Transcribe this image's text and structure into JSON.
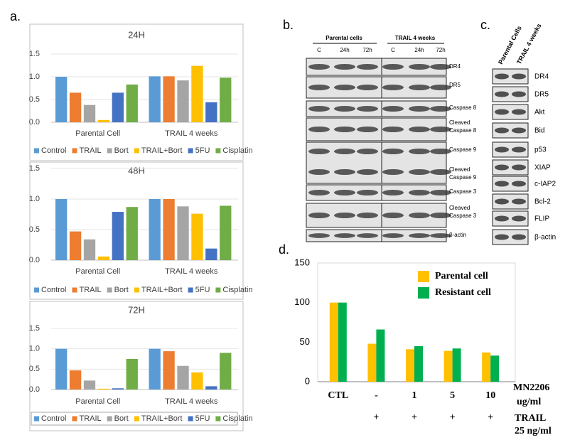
{
  "figure": {
    "panel_labels": [
      "a.",
      "b.",
      "c.",
      "d."
    ],
    "blot_b": {
      "groups": [
        "Parental cells",
        "TRAIL 4 weeks"
      ],
      "lanes": [
        "C",
        "24h",
        "72h",
        "C",
        "24h",
        "72h"
      ],
      "bands": [
        [
          "DR4"
        ],
        [
          "DR5"
        ],
        [
          "Caspase 8"
        ],
        [
          "Cleaved",
          "Caspase 8"
        ],
        [
          "Caspase 9"
        ],
        [
          "Cleaved",
          "Caspase 9"
        ],
        [
          "Caspase 3"
        ],
        [
          "Cleaved",
          "Caspase 3"
        ],
        [
          "β-actin"
        ]
      ]
    },
    "blot_c": {
      "lanes": [
        "Parental Cells",
        "TRAIL 4 weeks"
      ],
      "bands": [
        "DR4",
        "DR5",
        "Akt",
        "Bid",
        "p53",
        "XIAP",
        "c-IAP2",
        "Bcl-2",
        "FLIP",
        "β-actin"
      ]
    }
  },
  "chart_data": [
    {
      "type": "bar",
      "title": "24H",
      "categories": [
        "Parental Cell",
        "TRAIL 4 weeks"
      ],
      "series": [
        {
          "name": "Control",
          "color": "#5b9bd5",
          "values": [
            1.0,
            1.01
          ]
        },
        {
          "name": "TRAIL",
          "color": "#ed7d31",
          "values": [
            0.65,
            1.01
          ]
        },
        {
          "name": "Bort",
          "color": "#a5a5a5",
          "values": [
            0.38,
            0.92
          ]
        },
        {
          "name": "TRAIL+Bort",
          "color": "#ffc000",
          "values": [
            0.05,
            1.24
          ]
        },
        {
          "name": "5FU",
          "color": "#4472c4",
          "values": [
            0.65,
            0.44
          ]
        },
        {
          "name": "Cisplatin",
          "color": "#70ad47",
          "values": [
            0.83,
            0.98
          ]
        }
      ],
      "ylim": [
        0,
        1.5
      ],
      "yticks": [
        {
          "value": 0,
          "label": "0.0"
        },
        {
          "value": 0.5,
          "label": "0.5"
        },
        {
          "value": 1,
          "label": "1.0"
        },
        {
          "value": 1.5,
          "label": "1.5"
        }
      ],
      "grid": true,
      "legend": "bottom",
      "legend_frame": false
    },
    {
      "type": "bar",
      "title": "48H",
      "categories": [
        "Parental Cell",
        "TRAIL 4 weeks"
      ],
      "series": [
        {
          "name": "Control",
          "color": "#5b9bd5",
          "values": [
            1.0,
            1.0
          ]
        },
        {
          "name": "TRAIL",
          "color": "#ed7d31",
          "values": [
            0.47,
            1.0
          ]
        },
        {
          "name": "Bort",
          "color": "#a5a5a5",
          "values": [
            0.34,
            0.88
          ]
        },
        {
          "name": "TRAIL+Bort",
          "color": "#ffc000",
          "values": [
            0.06,
            0.76
          ]
        },
        {
          "name": "5FU",
          "color": "#4472c4",
          "values": [
            0.79,
            0.19
          ]
        },
        {
          "name": "Cisplatin",
          "color": "#70ad47",
          "values": [
            0.87,
            0.89
          ]
        }
      ],
      "ylim": [
        0,
        1.5
      ],
      "yticks": [
        {
          "value": 0,
          "label": "0.0"
        },
        {
          "value": 0.5,
          "label": "0.5"
        },
        {
          "value": 1,
          "label": "1.0"
        },
        {
          "value": 1.5,
          "label": "1.5"
        }
      ],
      "grid": true,
      "legend": "bottom",
      "legend_frame": false
    },
    {
      "type": "bar",
      "title": "72H",
      "categories": [
        "Parental Cell",
        "TRAIL 4 weeks"
      ],
      "series": [
        {
          "name": "Control",
          "color": "#5b9bd5",
          "values": [
            1.0,
            1.0
          ]
        },
        {
          "name": "TRAIL",
          "color": "#ed7d31",
          "values": [
            0.47,
            0.94
          ]
        },
        {
          "name": "Bort",
          "color": "#a5a5a5",
          "values": [
            0.22,
            0.58
          ]
        },
        {
          "name": "TRAIL+Bort",
          "color": "#ffc000",
          "values": [
            0.02,
            0.42
          ]
        },
        {
          "name": "5FU",
          "color": "#4472c4",
          "values": [
            0.03,
            0.08
          ]
        },
        {
          "name": "Cisplatin",
          "color": "#70ad47",
          "values": [
            0.75,
            0.9
          ]
        }
      ],
      "ylim": [
        0,
        1.5
      ],
      "yticks": [
        {
          "value": 0,
          "label": "0.0"
        },
        {
          "value": 0.5,
          "label": "0.5"
        },
        {
          "value": 1,
          "label": "1.0"
        },
        {
          "value": 1.5,
          "label": "1.5"
        }
      ],
      "grid": true,
      "legend": "bottom",
      "legend_frame": true
    },
    {
      "type": "bar",
      "categories": [
        "CTL",
        "-",
        "1",
        "5",
        "10"
      ],
      "series": [
        {
          "name": "Parental cell",
          "color": "#ffc000",
          "values": [
            100,
            48,
            41,
            39,
            37
          ]
        },
        {
          "name": "Resistant cell",
          "color": "#00b050",
          "values": [
            100,
            66,
            45,
            42,
            33
          ]
        }
      ],
      "x_title": [
        "MN2206",
        "ug/ml"
      ],
      "trail_row": [
        null,
        "+",
        "+",
        "+",
        "+"
      ],
      "trail_title": [
        "TRAIL",
        "25 ng/ml"
      ],
      "ylim": [
        0,
        150
      ],
      "yticks": [
        0,
        50,
        100,
        150
      ],
      "grid": false,
      "legend": "top-right"
    }
  ]
}
